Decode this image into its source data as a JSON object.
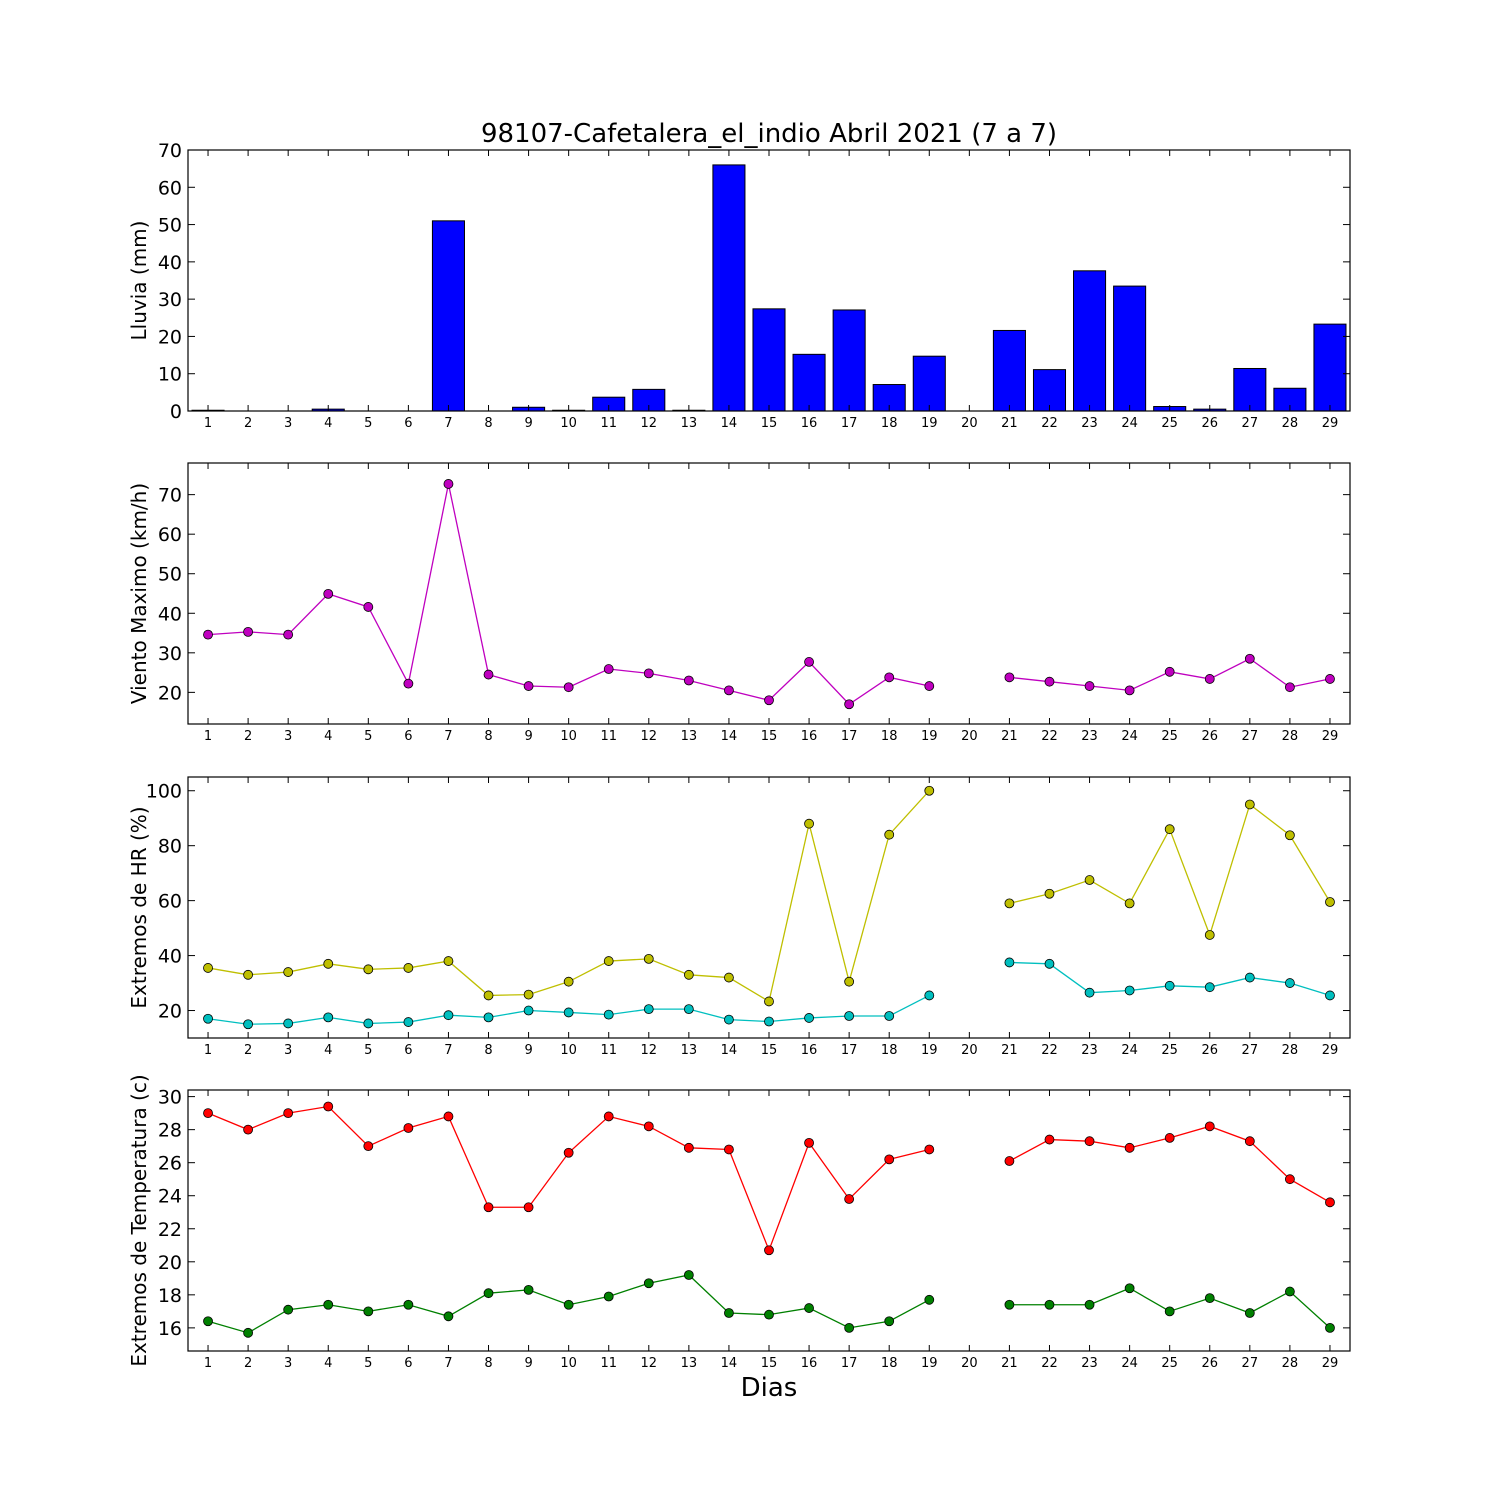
{
  "title": "98107-Cafetalera_el_indio Abril 2021  (7 a 7)",
  "xlabel": "Dias",
  "days": [
    1,
    2,
    3,
    4,
    5,
    6,
    7,
    8,
    9,
    10,
    11,
    12,
    13,
    14,
    15,
    16,
    17,
    18,
    19,
    20,
    21,
    22,
    23,
    24,
    25,
    26,
    27,
    28,
    29
  ],
  "chart_data": [
    {
      "type": "bar",
      "ylabel": "Lluvia (mm)",
      "ylim": [
        0,
        70
      ],
      "yticks": [
        0,
        10,
        20,
        30,
        40,
        50,
        60,
        70
      ],
      "grid": false,
      "series": [
        {
          "color": "#0000ff",
          "values": [
            0.2,
            0,
            0,
            0.5,
            0,
            0,
            51,
            0,
            1,
            0.2,
            3.7,
            5.8,
            0.2,
            66,
            27.4,
            15.2,
            27.1,
            7.1,
            14.7,
            0,
            21.6,
            11.1,
            37.6,
            33.5,
            1.2,
            0.5,
            11.4,
            6.1,
            23.3
          ]
        }
      ]
    },
    {
      "type": "line",
      "ylabel": "Viento Maximo (km/h)",
      "ylim": [
        12,
        78
      ],
      "yticks": [
        20,
        30,
        40,
        50,
        60,
        70
      ],
      "grid": false,
      "series": [
        {
          "color": "#bf00bf",
          "values": [
            34.6,
            35.3,
            34.6,
            44.9,
            41.6,
            22.2,
            72.7,
            24.5,
            21.6,
            21.3,
            25.9,
            24.8,
            23.0,
            20.5,
            18.0,
            27.7,
            17.0,
            23.8,
            21.6,
            null,
            23.8,
            22.7,
            21.6,
            20.5,
            25.2,
            23.4,
            28.5,
            21.3,
            23.4
          ]
        }
      ]
    },
    {
      "type": "line",
      "ylabel": "Extremos de HR (%)",
      "ylim": [
        10,
        105
      ],
      "yticks": [
        20,
        40,
        60,
        80,
        100
      ],
      "grid": false,
      "series": [
        {
          "color": "#bfbf00",
          "values": [
            35.5,
            33.0,
            34.0,
            37.0,
            35.0,
            35.5,
            38.0,
            25.5,
            25.8,
            30.5,
            38.0,
            38.8,
            33.0,
            32.0,
            23.3,
            88.0,
            30.5,
            84.0,
            100.0,
            null,
            59.0,
            62.5,
            67.5,
            59.0,
            86.0,
            47.5,
            95.0,
            83.8,
            59.5
          ]
        },
        {
          "color": "#00bfbf",
          "values": [
            17.0,
            15.0,
            15.3,
            17.5,
            15.3,
            15.8,
            18.3,
            17.5,
            20.0,
            19.3,
            18.5,
            20.5,
            20.5,
            16.7,
            16.0,
            17.3,
            18.0,
            18.0,
            25.5,
            null,
            37.5,
            37.0,
            26.5,
            27.3,
            29.0,
            28.5,
            32.0,
            30.0,
            25.5
          ]
        }
      ]
    },
    {
      "type": "line",
      "ylabel": "Extremos de Temperatura (c)",
      "ylim": [
        14.6,
        30.4
      ],
      "yticks": [
        16,
        18,
        20,
        22,
        24,
        26,
        28,
        30
      ],
      "grid": false,
      "series": [
        {
          "color": "#ff0000",
          "values": [
            29.0,
            28.0,
            29.0,
            29.4,
            27.0,
            28.1,
            28.8,
            23.3,
            23.3,
            26.6,
            28.8,
            28.2,
            26.9,
            26.8,
            20.7,
            27.2,
            23.8,
            26.2,
            26.8,
            null,
            26.1,
            27.4,
            27.3,
            26.9,
            27.5,
            28.2,
            27.3,
            25.0,
            23.6
          ]
        },
        {
          "color": "#008000",
          "values": [
            16.4,
            15.7,
            17.1,
            17.4,
            17.0,
            17.4,
            16.7,
            18.1,
            18.3,
            17.4,
            17.9,
            18.7,
            19.2,
            16.9,
            16.8,
            17.2,
            16.0,
            16.4,
            17.7,
            null,
            17.4,
            17.4,
            17.4,
            18.4,
            17.0,
            17.8,
            16.9,
            18.2,
            16.0
          ]
        }
      ]
    }
  ]
}
